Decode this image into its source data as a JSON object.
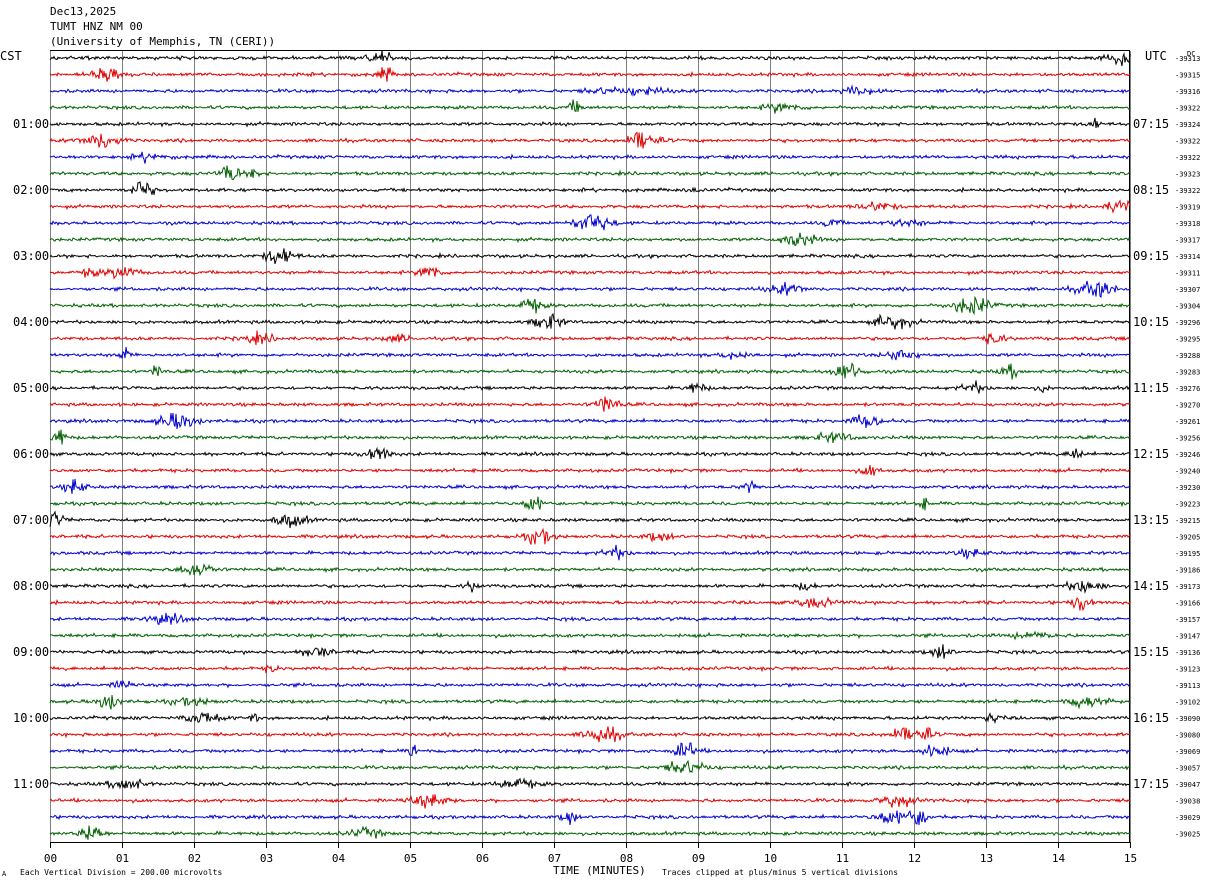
{
  "header": {
    "date": "Dec13,2025",
    "station": "TUMT HNZ NM 00",
    "network": "(University of Memphis, TN (CERI))"
  },
  "left_tz": "CST",
  "right_tz": "UTC",
  "dc_label": "DC",
  "footer": {
    "scale_symbol": "A",
    "scale_note": "Each Vertical Division =  200.00 microvolts",
    "xlabel": "TIME (MINUTES)",
    "clip_note": "Traces clipped at plus/minus 5 vertical divisions"
  },
  "colors": {
    "cycle": [
      "#000000",
      "#e00000",
      "#0000d0",
      "#006000"
    ],
    "grid": "#808080"
  },
  "chart_data": {
    "type": "line",
    "title": "TUMT HNZ NM 00",
    "xlabel": "TIME (MINUTES)",
    "xlim": [
      0,
      15
    ],
    "x_ticks": [
      "00",
      "01",
      "02",
      "03",
      "04",
      "05",
      "06",
      "07",
      "08",
      "09",
      "10",
      "11",
      "12",
      "13",
      "14",
      "15"
    ],
    "trace_count": 48,
    "left_hour_labels": [
      "01:00",
      "02:00",
      "03:00",
      "04:00",
      "05:00",
      "06:00",
      "07:00",
      "08:00",
      "09:00",
      "10:00",
      "11:00"
    ],
    "right_hour_labels": [
      "07:15",
      "08:15",
      "09:15",
      "10:15",
      "11:15",
      "12:15",
      "13:15",
      "14:15",
      "15:15",
      "16:15",
      "17:15"
    ],
    "dc_offsets": [
      -39313,
      -39315,
      -39316,
      -39322,
      -39324,
      -39322,
      -39322,
      -39323,
      -39322,
      -39319,
      -39318,
      -39317,
      -39314,
      -39311,
      -39307,
      -39304,
      -39296,
      -39295,
      -39288,
      -39283,
      -39276,
      -39270,
      -39261,
      -39256,
      -39246,
      -39240,
      -39230,
      -39223,
      -39215,
      -39205,
      -39195,
      -39186,
      -39173,
      -39166,
      -39157,
      -39147,
      -39136,
      -39123,
      -39113,
      -39102,
      -39090,
      -39080,
      -39069,
      -39057,
      -39047,
      -39038,
      -39029,
      -39025
    ],
    "grid": true,
    "clip_divisions": 5,
    "microvolts_per_division": 200.0
  }
}
